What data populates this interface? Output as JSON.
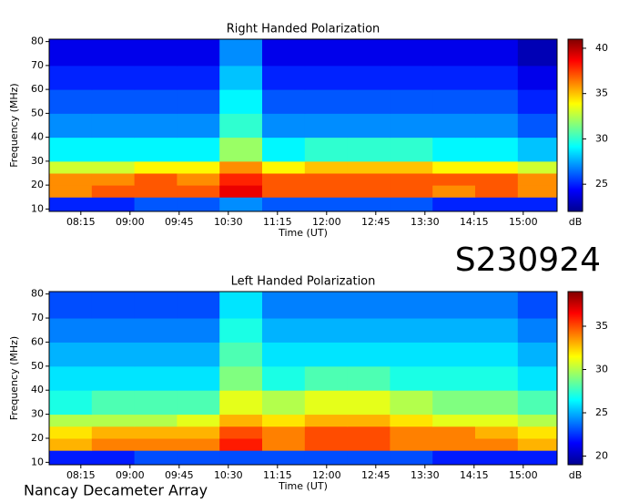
{
  "chart_data": [
    {
      "type": "heatmap",
      "title": "Right Handed Polarization",
      "xlabel": "Time (UT)",
      "ylabel": "Frequency (MHz)",
      "xlim": [
        466,
        931
      ],
      "ylim": [
        9,
        81
      ],
      "xticks": [
        {
          "value": 495,
          "label": "08:15"
        },
        {
          "value": 540,
          "label": "09:00"
        },
        {
          "value": 585,
          "label": "09:45"
        },
        {
          "value": 630,
          "label": "10:30"
        },
        {
          "value": 675,
          "label": "11:15"
        },
        {
          "value": 720,
          "label": "12:00"
        },
        {
          "value": 765,
          "label": "12:45"
        },
        {
          "value": 810,
          "label": "13:30"
        },
        {
          "value": 855,
          "label": "14:15"
        },
        {
          "value": 900,
          "label": "15:00"
        }
      ],
      "yticks": [
        10,
        20,
        30,
        40,
        50,
        60,
        70,
        80
      ],
      "x_edges": [
        466,
        505,
        544,
        583,
        622,
        661,
        700,
        739,
        778,
        817,
        856,
        895,
        931
      ],
      "y_edges": [
        9,
        15,
        20,
        25,
        30,
        40,
        50,
        60,
        70,
        81
      ],
      "z": [
        [
          25,
          25,
          26,
          26,
          27,
          26,
          26,
          26,
          26,
          25,
          25,
          25
        ],
        [
          36,
          37,
          37,
          37,
          39,
          37,
          37,
          37,
          37,
          36,
          37,
          36
        ],
        [
          36,
          36,
          37,
          36,
          38,
          37,
          37,
          37,
          37,
          37,
          37,
          36
        ],
        [
          33,
          33,
          34,
          34,
          36,
          34,
          35,
          35,
          35,
          34,
          34,
          33
        ],
        [
          29,
          29,
          29,
          29,
          32,
          29,
          30,
          30,
          30,
          29,
          29,
          28
        ],
        [
          27,
          27,
          27,
          27,
          30,
          27,
          27,
          27,
          27,
          27,
          27,
          26
        ],
        [
          26,
          26,
          26,
          26,
          29,
          26,
          26,
          26,
          26,
          26,
          26,
          25
        ],
        [
          25,
          25,
          25,
          25,
          28,
          25,
          25,
          25,
          25,
          25,
          25,
          24
        ],
        [
          24,
          24,
          24,
          24,
          27,
          24,
          24,
          24,
          24,
          24,
          24,
          23
        ]
      ],
      "clim": [
        22,
        41
      ],
      "cticks": [
        25,
        30,
        35,
        40
      ],
      "colorbar_label": "dB",
      "colormap": "jet"
    },
    {
      "type": "heatmap",
      "title": "Left Handed Polarization",
      "xlabel": "Time (UT)",
      "ylabel": "Frequency (MHz)",
      "xlim": [
        466,
        931
      ],
      "ylim": [
        9,
        81
      ],
      "xticks": [
        {
          "value": 495,
          "label": "08:15"
        },
        {
          "value": 540,
          "label": "09:00"
        },
        {
          "value": 585,
          "label": "09:45"
        },
        {
          "value": 630,
          "label": "10:30"
        },
        {
          "value": 675,
          "label": "11:15"
        },
        {
          "value": 720,
          "label": "12:00"
        },
        {
          "value": 765,
          "label": "12:45"
        },
        {
          "value": 810,
          "label": "13:30"
        },
        {
          "value": 855,
          "label": "14:15"
        },
        {
          "value": 900,
          "label": "15:00"
        }
      ],
      "yticks": [
        10,
        20,
        30,
        40,
        50,
        60,
        70,
        80
      ],
      "x_edges": [
        466,
        505,
        544,
        583,
        622,
        661,
        700,
        739,
        778,
        817,
        856,
        895,
        931
      ],
      "y_edges": [
        9,
        15,
        20,
        25,
        30,
        40,
        50,
        60,
        70,
        81
      ],
      "z": [
        [
          22,
          22,
          23,
          23,
          23,
          23,
          23,
          23,
          23,
          22,
          22,
          22
        ],
        [
          33,
          34,
          34,
          34,
          36,
          34,
          35,
          35,
          34,
          34,
          34,
          33
        ],
        [
          32,
          33,
          33,
          33,
          35,
          34,
          35,
          35,
          34,
          34,
          33,
          32
        ],
        [
          30,
          30,
          30,
          31,
          33,
          32,
          33,
          33,
          32,
          31,
          31,
          30
        ],
        [
          27,
          28,
          28,
          28,
          31,
          30,
          31,
          31,
          30,
          29,
          29,
          28
        ],
        [
          26,
          26,
          26,
          26,
          29,
          27,
          28,
          28,
          27,
          27,
          27,
          26
        ],
        [
          25,
          25,
          25,
          25,
          28,
          26,
          26,
          26,
          26,
          26,
          26,
          25
        ],
        [
          24,
          24,
          24,
          24,
          27,
          25,
          25,
          25,
          25,
          25,
          25,
          24
        ],
        [
          23,
          23,
          23,
          23,
          26,
          24,
          24,
          24,
          24,
          24,
          24,
          23
        ]
      ],
      "clim": [
        19,
        39
      ],
      "cticks": [
        20,
        25,
        30,
        35
      ],
      "colorbar_label": "dB",
      "colormap": "jet"
    }
  ],
  "observation_id": "S230924",
  "instrument": "Nancay Decameter Array"
}
